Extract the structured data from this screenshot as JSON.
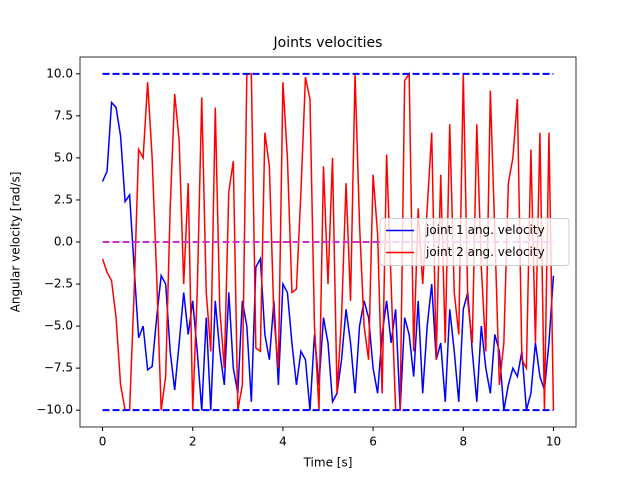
{
  "chart_data": {
    "type": "line",
    "title": "Joints velocities",
    "x_label": "Time [s]",
    "y_label": "Angular velocity [rad/s]",
    "x": [
      0,
      0.1,
      0.2,
      0.3,
      0.4,
      0.5,
      0.6,
      0.7,
      0.8,
      0.9,
      1,
      1.1,
      1.2,
      1.3,
      1.4,
      1.5,
      1.6,
      1.7,
      1.8,
      1.9,
      2,
      2.1,
      2.2,
      2.3,
      2.4,
      2.5,
      2.6,
      2.7,
      2.8,
      2.9,
      3,
      3.1,
      3.2,
      3.3,
      3.4,
      3.5,
      3.6,
      3.7,
      3.8,
      3.9,
      4,
      4.1,
      4.2,
      4.3,
      4.4,
      4.5,
      4.6,
      4.7,
      4.8,
      4.9,
      5,
      5.1,
      5.2,
      5.3,
      5.4,
      5.5,
      5.6,
      5.7,
      5.8,
      5.9,
      6,
      6.1,
      6.2,
      6.3,
      6.4,
      6.5,
      6.6,
      6.7,
      6.8,
      6.9,
      7,
      7.1,
      7.2,
      7.3,
      7.4,
      7.5,
      7.6,
      7.7,
      7.8,
      7.9,
      8,
      8.1,
      8.2,
      8.3,
      8.4,
      8.5,
      8.6,
      8.7,
      8.8,
      8.9,
      9,
      9.1,
      9.2,
      9.3,
      9.4,
      9.5,
      9.6,
      9.7,
      9.8,
      9.9,
      10
    ],
    "series": [
      {
        "name": "joint 1 ang. velocity",
        "color": "#0000ff",
        "values": [
          3.6,
          4.2,
          8.3,
          8.0,
          6.3,
          2.4,
          2.8,
          -1.5,
          -5.7,
          -5.0,
          -7.6,
          -7.4,
          -4.5,
          -2.0,
          -2.5,
          -6.5,
          -8.8,
          -6.0,
          -3.0,
          -5.5,
          -3.5,
          -6.5,
          -10,
          -4.5,
          -10,
          -3.5,
          -6.5,
          -8.5,
          -3.0,
          -7.5,
          -9.0,
          -3.5,
          -5.0,
          -9.5,
          -1.5,
          -1.0,
          -5.5,
          -7.0,
          -3.5,
          -8.5,
          -2.5,
          -3.0,
          -6.0,
          -8.5,
          -6.5,
          -7.0,
          -10,
          -5.5,
          -8.5,
          -4.5,
          -6.0,
          -9.5,
          -9.0,
          -7.0,
          -4.0,
          -6.0,
          -9.0,
          -5.0,
          -3.5,
          -4.5,
          -7.5,
          -9.0,
          -5.5,
          -3.5,
          -6.0,
          -4.0,
          -10,
          -4.5,
          -5.5,
          -8.0,
          -3.5,
          -9.0,
          -5.0,
          -2.5,
          -7.0,
          -6.0,
          -9.5,
          -4.0,
          -6.5,
          -9.5,
          -4.0,
          -3.0,
          -6.5,
          -9.5,
          -5.0,
          -7.5,
          -9.0,
          -5.5,
          -6.5,
          -10,
          -8.5,
          -7.5,
          -8.0,
          -6.5,
          -10,
          -9.0,
          -6.0,
          -8.0,
          -8.8,
          -6.0,
          -2.0
        ]
      },
      {
        "name": "joint 2 ang. velocity",
        "color": "#ff0000",
        "values": [
          -1,
          -1.8,
          -2.3,
          -4.5,
          -8.5,
          -10,
          -10,
          -3,
          5.5,
          5.0,
          9.5,
          5.0,
          -2,
          -10,
          -8,
          2,
          8.8,
          6,
          -2.5,
          3.5,
          -10,
          -3,
          8.6,
          -3,
          -6.5,
          8.0,
          -4,
          -7.5,
          3.0,
          4.8,
          -10,
          -8.5,
          10,
          10,
          -6.3,
          -6.5,
          6.5,
          4.5,
          -4.5,
          -7.5,
          9.5,
          5.0,
          -3,
          -2.8,
          3.0,
          9.8,
          8.5,
          -5,
          -10,
          4.5,
          -2.5,
          5.0,
          -9,
          -4.5,
          3.5,
          -3.5,
          10,
          1.0,
          -5.0,
          -7.0,
          4.0,
          0.5,
          -9.0,
          5.2,
          -2.5,
          -10,
          -10,
          9.6,
          10,
          -6.5,
          2.0,
          -2.5,
          2.0,
          6.5,
          -7.0,
          4.0,
          -6.0,
          7.0,
          -3.0,
          -5.5,
          10,
          -3.5,
          -6.0,
          7.0,
          -1.5,
          -6.5,
          9.0,
          0.5,
          -8.5,
          -6.0,
          3.5,
          5.0,
          8.5,
          -7.0,
          -7.5,
          5.5,
          -6.0,
          6.5,
          -10,
          6.5,
          -10
        ]
      }
    ],
    "reference_lines": [
      {
        "value": 10,
        "color": "#0000ff"
      },
      {
        "value": -10,
        "color": "#0000ff"
      },
      {
        "value": 0,
        "color": "#cc33cc"
      }
    ],
    "xlim": [
      -0.5,
      10.5
    ],
    "ylim": [
      -11,
      11
    ],
    "xticks": [
      0,
      2,
      4,
      6,
      8,
      10
    ],
    "yticks": [
      {
        "value": -10,
        "label": "−10.0"
      },
      {
        "value": -7.5,
        "label": "−7.5"
      },
      {
        "value": -5,
        "label": "−5.0"
      },
      {
        "value": -2.5,
        "label": "−2.5"
      },
      {
        "value": 0,
        "label": "0.0"
      },
      {
        "value": 2.5,
        "label": "2.5"
      },
      {
        "value": 5,
        "label": "5.0"
      },
      {
        "value": 7.5,
        "label": "7.5"
      },
      {
        "value": 10,
        "label": "10.0"
      }
    ],
    "legend": "center right"
  }
}
